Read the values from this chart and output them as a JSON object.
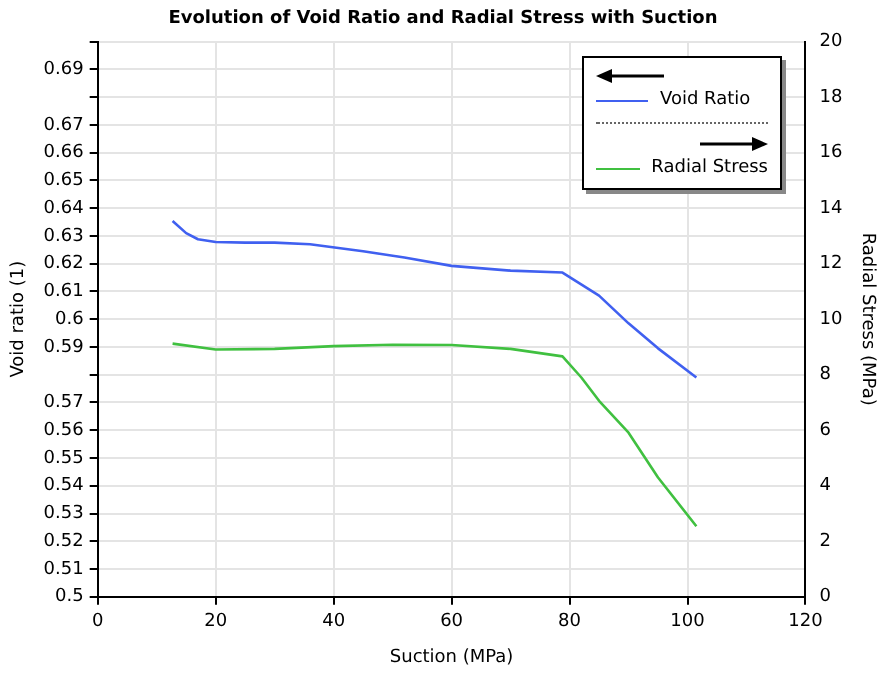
{
  "chart_data": {
    "type": "line",
    "title": "Evolution of Void Ratio and Radial Stress with Suction",
    "xlabel": "Suction (MPa)",
    "ylabel": "Void ratio (1)",
    "y2label": "Radial Stress (MPa)",
    "xlim": [
      0,
      120
    ],
    "xticks": [
      0,
      20,
      40,
      60,
      80,
      100,
      120
    ],
    "ylim": [
      0.5,
      0.7
    ],
    "yticks": [
      0.5,
      0.51,
      0.52,
      0.53,
      0.54,
      0.55,
      0.56,
      0.57,
      {
        "value": 0.58,
        "label": null
      },
      0.59,
      0.6,
      0.61,
      0.62,
      0.63,
      0.64,
      0.65,
      0.66,
      0.67,
      {
        "value": 0.68,
        "label": null
      },
      0.69,
      {
        "value": 0.7,
        "label": null
      }
    ],
    "y2lim": [
      0,
      20
    ],
    "y2ticks": [
      0,
      2,
      4,
      6,
      8,
      10,
      12,
      14,
      16,
      18,
      20
    ],
    "grid": true,
    "legend": "top right",
    "marker": "none",
    "line_style": "solid",
    "series": [
      {
        "name": "Void Ratio",
        "color": "#4060f0",
        "x": [
          12.7,
          15,
          17,
          20,
          25,
          30,
          36,
          45,
          52,
          60,
          70,
          78.8,
          85,
          90,
          95,
          101.5
        ],
        "values": [
          0.6354,
          0.631,
          0.6288,
          0.6278,
          0.6276,
          0.6276,
          0.627,
          0.6245,
          0.6222,
          0.6192,
          0.6175,
          0.6168,
          0.6085,
          0.5985,
          0.5895,
          0.579
        ]
      },
      {
        "name": "Radial Stress",
        "color": "#40c040",
        "axis": "y2",
        "x": [
          12.7,
          20,
          30,
          40,
          50,
          60,
          70,
          78.8,
          82,
          85,
          90,
          95,
          101.5
        ],
        "values": [
          9.12,
          8.91,
          8.93,
          9.03,
          9.08,
          9.07,
          8.93,
          8.66,
          7.9,
          7.06,
          5.91,
          4.3,
          2.54
        ]
      }
    ]
  }
}
